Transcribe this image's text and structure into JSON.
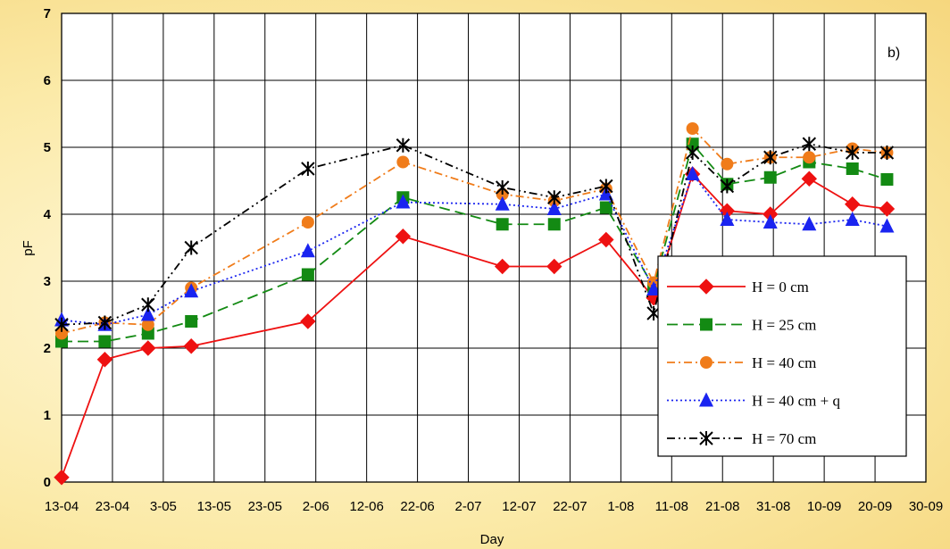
{
  "chart_data": {
    "type": "line",
    "panel_label": "b)",
    "xlabel": "Day",
    "ylabel": "pF",
    "ylim": [
      0,
      7
    ],
    "yticks": [
      "0",
      "1",
      "2",
      "3",
      "4",
      "5",
      "6",
      "7"
    ],
    "x_tick_labels": [
      "13-04",
      "23-04",
      "3-05",
      "13-05",
      "23-05",
      "2-06",
      "12-06",
      "22-06",
      "2-07",
      "12-07",
      "22-07",
      "1-08",
      "11-08",
      "21-08",
      "31-08",
      "10-09",
      "20-09",
      "30-09"
    ],
    "grid": true,
    "legend_position": "right",
    "series": [
      {
        "name": "H = 0 cm",
        "color": "#ee1111",
        "marker": "diamond",
        "dash": "",
        "points": [
          [
            0,
            0.07
          ],
          [
            0.5,
            1.83
          ],
          [
            1,
            2.0
          ],
          [
            1.5,
            2.03
          ],
          [
            2.85,
            2.4
          ],
          [
            3.95,
            3.67
          ],
          [
            5.1,
            3.22
          ],
          [
            5.7,
            3.22
          ],
          [
            6.3,
            3.62
          ],
          [
            6.85,
            2.75
          ],
          [
            7.3,
            4.6
          ],
          [
            7.7,
            4.05
          ],
          [
            8.2,
            4.0
          ],
          [
            8.65,
            4.53
          ],
          [
            9.15,
            4.15
          ],
          [
            9.55,
            4.08
          ]
        ]
      },
      {
        "name": "H = 25 cm",
        "color": "#138a13",
        "marker": "square",
        "dash": "12,6",
        "points": [
          [
            0,
            2.1
          ],
          [
            0.5,
            2.1
          ],
          [
            1,
            2.22
          ],
          [
            1.5,
            2.4
          ],
          [
            2.85,
            3.1
          ],
          [
            3.95,
            4.25
          ],
          [
            5.1,
            3.85
          ],
          [
            5.7,
            3.85
          ],
          [
            6.3,
            4.1
          ],
          [
            6.85,
            2.92
          ],
          [
            7.3,
            5.05
          ],
          [
            7.7,
            4.45
          ],
          [
            8.2,
            4.55
          ],
          [
            8.65,
            4.78
          ],
          [
            9.15,
            4.68
          ],
          [
            9.55,
            4.52
          ]
        ]
      },
      {
        "name": "H = 40 cm",
        "color": "#f07c1a",
        "marker": "circle",
        "dash": "9,4,2,4",
        "points": [
          [
            0,
            2.22
          ],
          [
            0.5,
            2.38
          ],
          [
            1,
            2.35
          ],
          [
            1.5,
            2.9
          ],
          [
            2.85,
            3.88
          ],
          [
            3.95,
            4.78
          ],
          [
            5.1,
            4.3
          ],
          [
            5.7,
            4.2
          ],
          [
            6.3,
            4.38
          ],
          [
            6.85,
            2.98
          ],
          [
            7.3,
            5.28
          ],
          [
            7.7,
            4.75
          ],
          [
            8.2,
            4.85
          ],
          [
            8.65,
            4.85
          ],
          [
            9.15,
            4.98
          ],
          [
            9.55,
            4.92
          ]
        ]
      },
      {
        "name": "H = 40 cm + q",
        "color": "#1a24f0",
        "marker": "triangle",
        "dash": "2,3",
        "points": [
          [
            0,
            2.42
          ],
          [
            0.5,
            2.35
          ],
          [
            1,
            2.5
          ],
          [
            1.5,
            2.85
          ],
          [
            2.85,
            3.45
          ],
          [
            3.95,
            4.18
          ],
          [
            5.1,
            4.15
          ],
          [
            5.7,
            4.08
          ],
          [
            6.3,
            4.3
          ],
          [
            6.85,
            2.88
          ],
          [
            7.3,
            4.6
          ],
          [
            7.7,
            3.92
          ],
          [
            8.2,
            3.88
          ],
          [
            8.65,
            3.85
          ],
          [
            9.15,
            3.92
          ],
          [
            9.55,
            3.82
          ]
        ]
      },
      {
        "name": "H = 70 cm",
        "color": "#000000",
        "marker": "asterisk",
        "dash": "9,4,2,4,2,4",
        "points": [
          [
            0,
            2.35
          ],
          [
            0.5,
            2.38
          ],
          [
            1,
            2.65
          ],
          [
            1.5,
            3.5
          ],
          [
            2.85,
            4.68
          ],
          [
            3.95,
            5.03
          ],
          [
            5.1,
            4.4
          ],
          [
            5.7,
            4.25
          ],
          [
            6.3,
            4.42
          ],
          [
            6.85,
            2.52
          ],
          [
            7.3,
            4.92
          ],
          [
            7.7,
            4.42
          ],
          [
            8.2,
            4.85
          ],
          [
            8.65,
            5.05
          ],
          [
            9.15,
            4.92
          ],
          [
            9.55,
            4.92
          ]
        ]
      }
    ]
  }
}
